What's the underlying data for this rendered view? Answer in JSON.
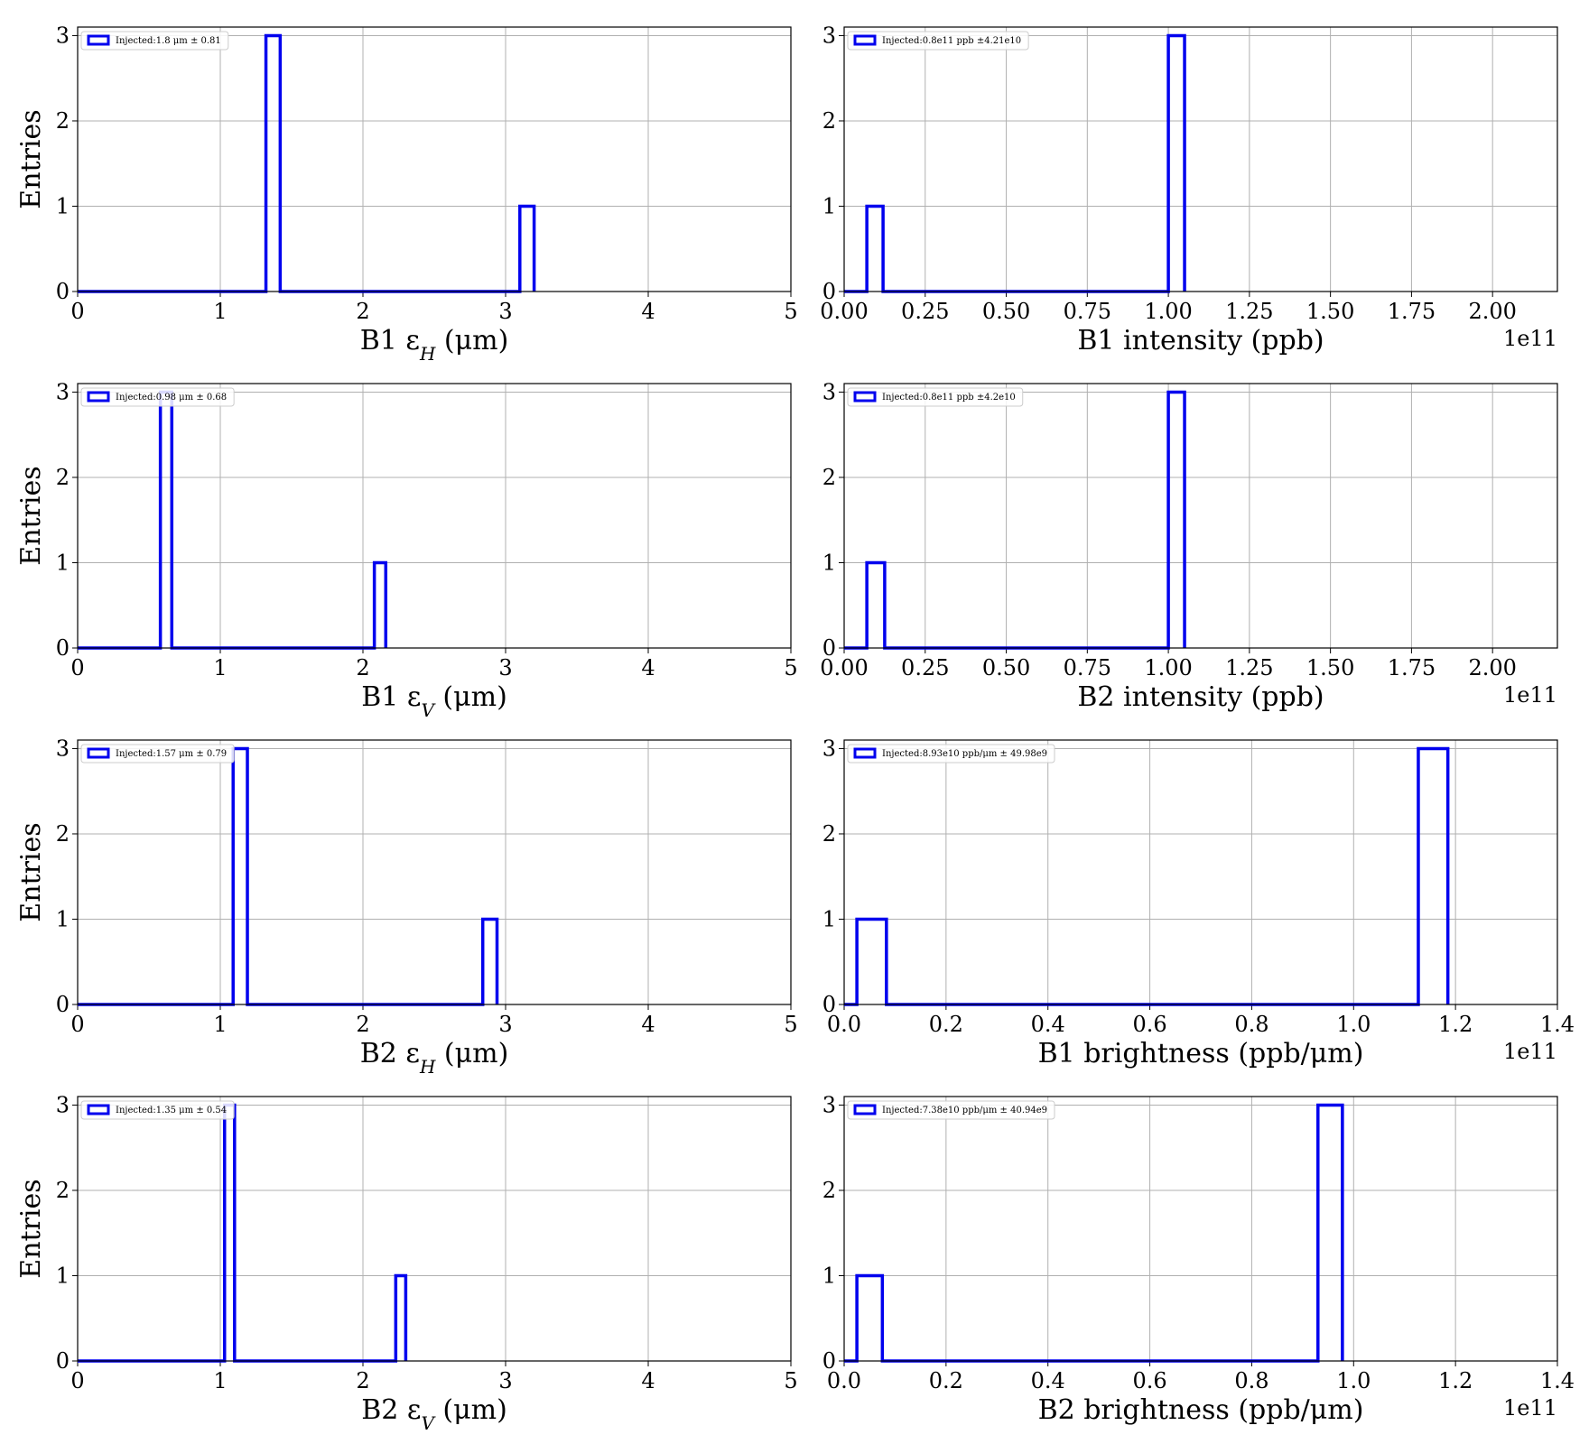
{
  "chart_data": [
    {
      "type": "histogram",
      "xlabel": "B1 ε_H (μm)",
      "ylabel": "Entries",
      "xlim": [
        0,
        5
      ],
      "ylim": [
        0,
        3.1
      ],
      "xticks": [
        "0",
        "1",
        "2",
        "3",
        "4",
        "5"
      ],
      "yticks": [
        "0",
        "1",
        "2",
        "3"
      ],
      "x_offset": "",
      "grid": true,
      "legend": {
        "label": "Injected:1.8 μm ± 0.81",
        "placement": "upper-left"
      },
      "bins": [
        {
          "x0": 1.32,
          "x1": 1.42,
          "count": 3
        },
        {
          "x0": 3.1,
          "x1": 3.2,
          "count": 1
        }
      ]
    },
    {
      "type": "histogram",
      "xlabel": "B1 intensity (ppb)",
      "ylabel": "",
      "xlim": [
        0,
        2.2
      ],
      "ylim": [
        0,
        3.1
      ],
      "xticks": [
        "0.00",
        "0.25",
        "0.50",
        "0.75",
        "1.00",
        "1.25",
        "1.50",
        "1.75",
        "2.00"
      ],
      "yticks": [
        "0",
        "1",
        "2",
        "3"
      ],
      "x_offset": "1e11",
      "grid": true,
      "legend": {
        "label": "Injected:0.8e11 ppb ±4.21e10",
        "placement": "upper-left"
      },
      "bins": [
        {
          "x0": 0.07,
          "x1": 0.12,
          "count": 1
        },
        {
          "x0": 1.0,
          "x1": 1.05,
          "count": 3
        }
      ]
    },
    {
      "type": "histogram",
      "xlabel": "B1 ε_V (μm)",
      "ylabel": "Entries",
      "xlim": [
        0,
        5
      ],
      "ylim": [
        0,
        3.1
      ],
      "xticks": [
        "0",
        "1",
        "2",
        "3",
        "4",
        "5"
      ],
      "yticks": [
        "0",
        "1",
        "2",
        "3"
      ],
      "x_offset": "",
      "grid": true,
      "legend": {
        "label": "Injected:0.98 μm ± 0.68",
        "placement": "upper-left"
      },
      "bins": [
        {
          "x0": 0.58,
          "x1": 0.66,
          "count": 3
        },
        {
          "x0": 2.08,
          "x1": 2.16,
          "count": 1
        }
      ]
    },
    {
      "type": "histogram",
      "xlabel": "B2 intensity (ppb)",
      "ylabel": "",
      "xlim": [
        0,
        2.2
      ],
      "ylim": [
        0,
        3.1
      ],
      "xticks": [
        "0.00",
        "0.25",
        "0.50",
        "0.75",
        "1.00",
        "1.25",
        "1.50",
        "1.75",
        "2.00"
      ],
      "yticks": [
        "0",
        "1",
        "2",
        "3"
      ],
      "x_offset": "1e11",
      "grid": true,
      "legend": {
        "label": "Injected:0.8e11 ppb ±4.2e10",
        "placement": "upper-left"
      },
      "bins": [
        {
          "x0": 0.07,
          "x1": 0.125,
          "count": 1
        },
        {
          "x0": 1.0,
          "x1": 1.05,
          "count": 3
        }
      ]
    },
    {
      "type": "histogram",
      "xlabel": "B2 ε_H (μm)",
      "ylabel": "Entries",
      "xlim": [
        0,
        5
      ],
      "ylim": [
        0,
        3.1
      ],
      "xticks": [
        "0",
        "1",
        "2",
        "3",
        "4",
        "5"
      ],
      "yticks": [
        "0",
        "1",
        "2",
        "3"
      ],
      "x_offset": "",
      "grid": true,
      "legend": {
        "label": "Injected:1.57 μm ± 0.79",
        "placement": "upper-left"
      },
      "bins": [
        {
          "x0": 1.09,
          "x1": 1.19,
          "count": 3
        },
        {
          "x0": 2.84,
          "x1": 2.94,
          "count": 1
        }
      ]
    },
    {
      "type": "histogram",
      "xlabel": "B1 brightness (ppb/μm)",
      "ylabel": "",
      "xlim": [
        0,
        1.4
      ],
      "ylim": [
        0,
        3.1
      ],
      "xticks": [
        "0.0",
        "0.2",
        "0.4",
        "0.6",
        "0.8",
        "1.0",
        "1.2",
        "1.4"
      ],
      "yticks": [
        "0",
        "1",
        "2",
        "3"
      ],
      "x_offset": "1e11",
      "grid": true,
      "legend": {
        "label": "Injected:8.93e10 ppb/μm ± 49.98e9",
        "placement": "upper-left"
      },
      "bins": [
        {
          "x0": 0.025,
          "x1": 0.083,
          "count": 1
        },
        {
          "x0": 1.127,
          "x1": 1.185,
          "count": 3
        }
      ]
    },
    {
      "type": "histogram",
      "xlabel": "B2 ε_V (μm)",
      "ylabel": "Entries",
      "xlim": [
        0,
        5
      ],
      "ylim": [
        0,
        3.1
      ],
      "xticks": [
        "0",
        "1",
        "2",
        "3",
        "4",
        "5"
      ],
      "yticks": [
        "0",
        "1",
        "2",
        "3"
      ],
      "x_offset": "",
      "grid": true,
      "legend": {
        "label": "Injected:1.35 μm ± 0.54",
        "placement": "upper-left"
      },
      "bins": [
        {
          "x0": 1.03,
          "x1": 1.1,
          "count": 3
        },
        {
          "x0": 2.23,
          "x1": 2.3,
          "count": 1
        }
      ]
    },
    {
      "type": "histogram",
      "xlabel": "B2 brightness (ppb/μm)",
      "ylabel": "",
      "xlim": [
        0,
        1.4
      ],
      "ylim": [
        0,
        3.1
      ],
      "xticks": [
        "0.0",
        "0.2",
        "0.4",
        "0.6",
        "0.8",
        "1.0",
        "1.2",
        "1.4"
      ],
      "yticks": [
        "0",
        "1",
        "2",
        "3"
      ],
      "x_offset": "1e11",
      "grid": true,
      "legend": {
        "label": "Injected:7.38e10 ppb/μm ± 40.94e9",
        "placement": "upper-left"
      },
      "bins": [
        {
          "x0": 0.025,
          "x1": 0.075,
          "count": 1
        },
        {
          "x0": 0.93,
          "x1": 0.978,
          "count": 3
        }
      ]
    }
  ],
  "colors": {
    "series": "#0000ee",
    "grid": "#b0b0b0",
    "axes": "#000000"
  }
}
